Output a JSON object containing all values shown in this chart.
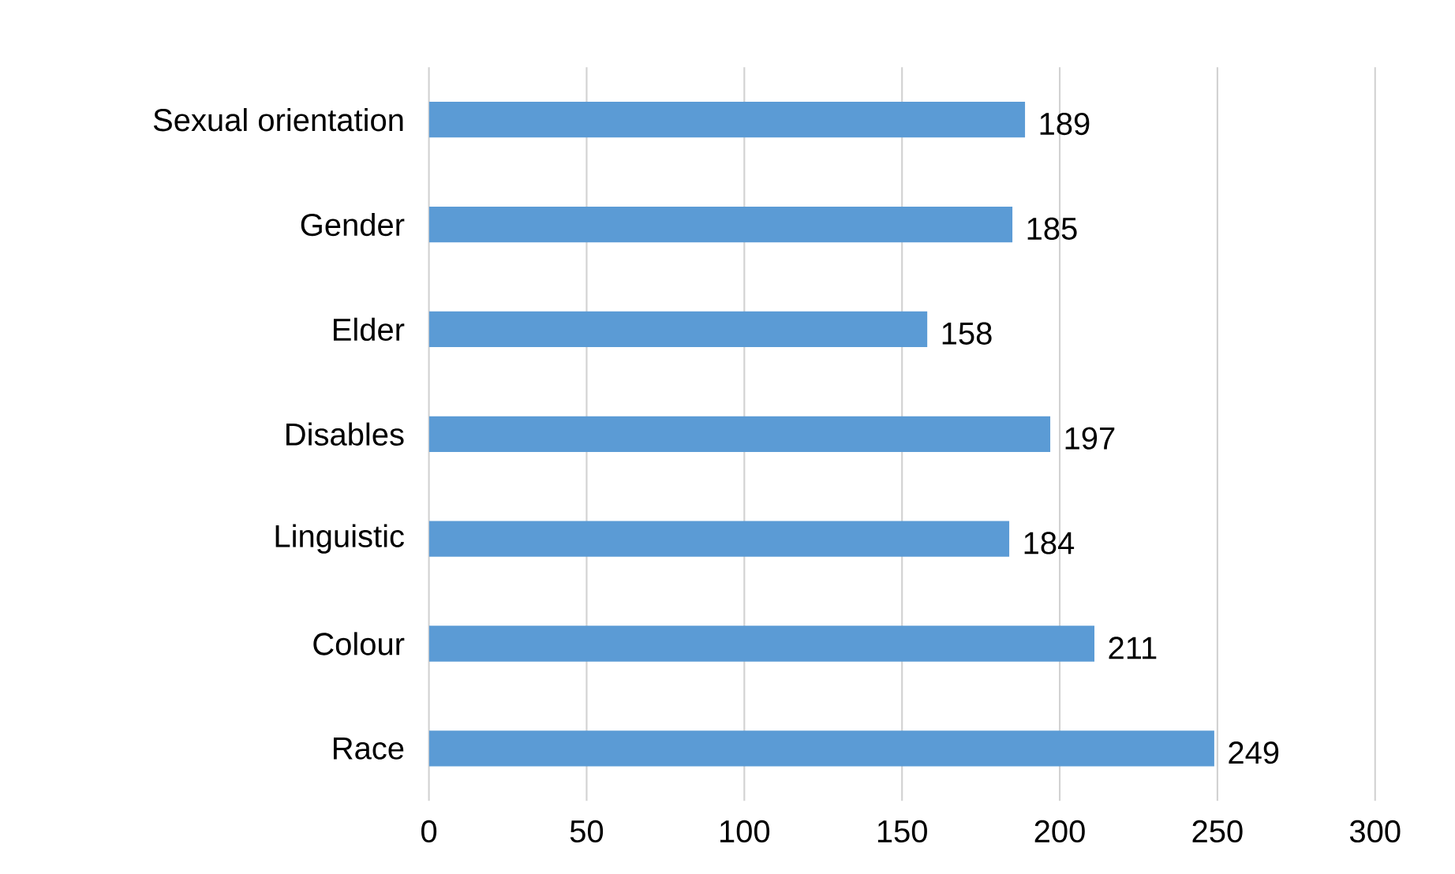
{
  "chart_data": {
    "type": "bar",
    "orientation": "horizontal",
    "categories": [
      "Sexual orientation",
      "Gender",
      "Elder",
      "Disables",
      "Linguistic",
      "Colour",
      "Race"
    ],
    "values": [
      189,
      185,
      158,
      197,
      184,
      211,
      249
    ],
    "color": "#5b9bd5",
    "xlim": [
      0,
      300
    ],
    "xticks": [
      0,
      50,
      100,
      150,
      200,
      250,
      300
    ],
    "grid": "x",
    "data_labels": true
  }
}
